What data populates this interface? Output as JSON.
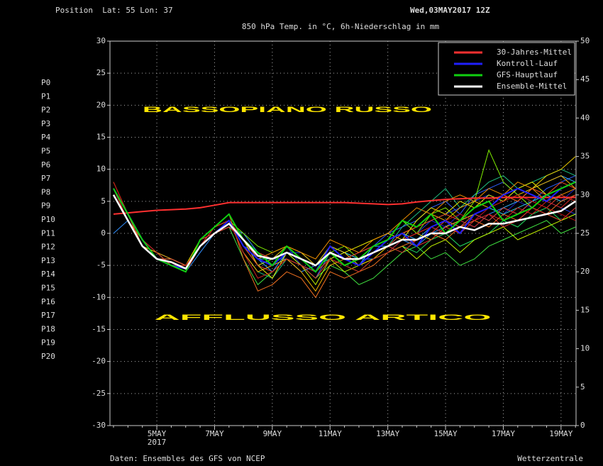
{
  "chart_data": {
    "type": "line",
    "position": "Position  Lat: 55 Lon: 37",
    "date": "Wed,03MAY2017 12Z",
    "title": "850 hPa Temp. in °C, 6h-Niederschlag in mm",
    "source": "Daten: Ensembles des GFS von NCEP",
    "credit": "Wetterzentrale",
    "annotations": [
      "BASSOPIANO RUSSO",
      "AFFLUSSO ARTICO"
    ],
    "year_label": "2017",
    "categories": [
      null,
      null,
      null,
      "5MAY",
      null,
      null,
      null,
      "7MAY",
      null,
      null,
      null,
      "9MAY",
      null,
      null,
      null,
      "11MAY",
      null,
      null,
      null,
      "13MAY",
      null,
      null,
      null,
      "15MAY",
      null,
      null,
      null,
      "17MAY",
      null,
      null,
      null,
      "19MAY",
      null
    ],
    "ylim": [
      -30,
      30
    ],
    "yticks": [
      -30,
      -25,
      -20,
      -15,
      -10,
      -5,
      0,
      5,
      10,
      15,
      20,
      25,
      30
    ],
    "y2lim": [
      0,
      50
    ],
    "y2ticks": [
      0,
      5,
      10,
      15,
      20,
      25,
      30,
      35,
      40,
      45,
      50
    ],
    "grid": true,
    "legend": "upper right",
    "series": [
      {
        "name": "30-Jahres-Mittel",
        "color": "#ff3030",
        "values": [
          3,
          3.2,
          3.4,
          3.6,
          3.7,
          3.8,
          4,
          4.4,
          4.8,
          4.8,
          4.8,
          4.8,
          4.8,
          4.8,
          4.8,
          4.8,
          4.8,
          4.7,
          4.6,
          4.5,
          4.6,
          4.9,
          5.1,
          5.3,
          5.4,
          5.5,
          5.5,
          5.6,
          5.6,
          5.6,
          5.6,
          5.6,
          5.6
        ]
      },
      {
        "name": "Kontroll-Lauf",
        "color": "#2020ff",
        "values": [
          7,
          3,
          -1,
          -4,
          -5,
          -5.5,
          -2,
          0,
          2,
          -2,
          -4,
          -5,
          -3,
          -4,
          -6,
          -2,
          -4,
          -5,
          -3,
          -1,
          0,
          -2,
          1,
          2,
          0,
          3,
          4,
          6,
          7,
          6,
          5,
          7,
          8
        ]
      },
      {
        "name": "GFS-Hauptlauf",
        "color": "#10d010",
        "values": [
          7,
          3,
          -1,
          -4,
          -5,
          -6,
          -1,
          1,
          3,
          -1,
          -3,
          -5,
          -2,
          -4,
          -6,
          -3,
          -5,
          -4,
          -2,
          -1,
          2,
          1,
          3,
          0,
          2,
          4,
          5,
          2,
          3,
          4,
          6,
          7,
          8
        ]
      },
      {
        "name": "Ensemble-Mittel",
        "color": "#ffffff",
        "values": [
          6,
          2,
          -2,
          -4,
          -4.5,
          -5.5,
          -2,
          0,
          1.5,
          -1,
          -3.5,
          -4,
          -3,
          -4,
          -5,
          -3,
          -4,
          -4,
          -3,
          -2,
          -1,
          -1,
          0,
          0,
          1,
          0.5,
          1.5,
          1.5,
          2,
          2.5,
          3,
          3.5,
          5
        ]
      }
    ],
    "members": [
      {
        "name": "P0",
        "color": "#2020c8",
        "values": [
          8,
          3,
          -1,
          -4,
          -4,
          -5,
          -2,
          1,
          2,
          -2,
          -5,
          -4,
          -2,
          -5,
          -6,
          -2,
          -3,
          -5,
          -2,
          -1,
          0,
          1,
          2,
          1,
          3,
          2,
          4,
          3,
          5,
          4,
          6,
          5,
          7
        ]
      },
      {
        "name": "P1",
        "color": "#2040e8",
        "values": [
          7,
          2,
          -2,
          -4,
          -5,
          -6,
          -1,
          0,
          1,
          -1,
          -4,
          -5,
          -3,
          -3,
          -5,
          -4,
          -5,
          -4,
          -3,
          -2,
          -1,
          0,
          2,
          3,
          4,
          5,
          6,
          5,
          7,
          6,
          5,
          4,
          3
        ]
      },
      {
        "name": "P2",
        "color": "#3060ff",
        "values": [
          7,
          2,
          -2,
          -3,
          -4,
          -5,
          -2,
          0,
          2,
          -2,
          -3,
          -4,
          -4,
          -5,
          -7,
          -3,
          -4,
          -3,
          -2,
          0,
          1,
          2,
          4,
          5,
          3,
          6,
          7,
          8,
          6,
          5,
          7,
          8,
          9
        ]
      },
      {
        "name": "P3",
        "color": "#3090ff",
        "values": [
          0,
          2,
          -2,
          -4,
          -5,
          -6,
          -3,
          0,
          1,
          0,
          -3,
          -5,
          -4,
          -6,
          -5,
          -2,
          -3,
          -4,
          -4,
          -3,
          -1,
          -2,
          0,
          1,
          2,
          1,
          3,
          4,
          3,
          5,
          6,
          7,
          8
        ]
      },
      {
        "name": "P4",
        "color": "#30b0ff",
        "values": [
          7,
          3,
          -2,
          -4,
          -5,
          -5,
          -2,
          1,
          2,
          -1,
          -4,
          -6,
          -3,
          -4,
          -5,
          -3,
          -4,
          -5,
          -2,
          -2,
          0,
          -1,
          1,
          0,
          2,
          3,
          2,
          4,
          5,
          7,
          8,
          9,
          8
        ]
      },
      {
        "name": "P5",
        "color": "#30d0e0",
        "values": [
          6,
          2,
          -1,
          -4,
          -4,
          -5,
          -2,
          0,
          2,
          -2,
          -4,
          -4,
          -3,
          -5,
          -6,
          -4,
          -3,
          -4,
          -3,
          -2,
          -1,
          0,
          1,
          2,
          1,
          3,
          4,
          3,
          4,
          5,
          6,
          5,
          6
        ]
      },
      {
        "name": "P6",
        "color": "#20c080",
        "values": [
          7,
          3,
          -2,
          -4,
          -5,
          -6,
          -2,
          1,
          2,
          -3,
          -6,
          -7,
          -4,
          -5,
          -6,
          -3,
          -4,
          -5,
          -3,
          -2,
          1,
          3,
          5,
          7,
          4,
          6,
          8,
          9,
          7,
          8,
          9,
          10,
          9
        ]
      },
      {
        "name": "P7",
        "color": "#20e060",
        "values": [
          7,
          2,
          -2,
          -4,
          -5,
          -6,
          -1,
          1,
          2,
          -1,
          -3,
          -5,
          -3,
          -4,
          -5,
          -4,
          -5,
          -6,
          -4,
          -3,
          -2,
          -3,
          -1,
          0,
          -2,
          -1,
          0,
          2,
          1,
          3,
          4,
          2,
          3
        ]
      },
      {
        "name": "P8",
        "color": "#40e040",
        "values": [
          7,
          3,
          -1,
          -4,
          -5,
          -5,
          -2,
          0,
          1,
          -4,
          -8,
          -6,
          -4,
          -5,
          -7,
          -5,
          -6,
          -8,
          -7,
          -5,
          -3,
          -2,
          -4,
          -3,
          -5,
          -4,
          -2,
          -1,
          0,
          1,
          2,
          0,
          1
        ]
      },
      {
        "name": "P9",
        "color": "#80f000",
        "values": [
          7,
          2,
          -2,
          -3,
          -5,
          -6,
          -1,
          1,
          2,
          0,
          -2,
          -3,
          -2,
          -4,
          -6,
          -3,
          -2,
          -4,
          -3,
          -1,
          2,
          0,
          3,
          4,
          2,
          5,
          13,
          8,
          6,
          4,
          3,
          2,
          3
        ]
      },
      {
        "name": "P10",
        "color": "#c0f000",
        "values": [
          8,
          3,
          -2,
          -4,
          -5,
          -6,
          -2,
          0,
          2,
          -2,
          -5,
          -4,
          -3,
          -5,
          -8,
          -4,
          -6,
          -5,
          -4,
          -3,
          -2,
          -4,
          -2,
          -1,
          -3,
          -1,
          0,
          1,
          -1,
          0,
          1,
          2,
          3
        ]
      },
      {
        "name": "P11",
        "color": "#f0f000",
        "values": [
          7,
          2,
          -2,
          -4,
          -4,
          -5,
          -1,
          1,
          3,
          -1,
          -5,
          -7,
          -3,
          -4,
          -6,
          -4,
          -3,
          -2,
          -1,
          0,
          -1,
          2,
          4,
          3,
          5,
          4,
          6,
          5,
          7,
          8,
          6,
          7,
          8
        ]
      },
      {
        "name": "P12",
        "color": "#f0d000",
        "values": [
          7,
          3,
          -1,
          -4,
          -5,
          -6,
          -2,
          0,
          1,
          -1,
          -3,
          -4,
          -2,
          -3,
          -5,
          -2,
          -3,
          -5,
          -4,
          -2,
          -1,
          0,
          -1,
          1,
          2,
          3,
          4,
          5,
          6,
          7,
          9,
          10,
          12
        ]
      },
      {
        "name": "P13",
        "color": "#f0b000",
        "values": [
          6,
          2,
          -2,
          -3,
          -4,
          -5,
          -2,
          1,
          2,
          -3,
          -6,
          -5,
          -4,
          -6,
          -9,
          -5,
          -4,
          -3,
          -2,
          -1,
          0,
          1,
          3,
          2,
          4,
          5,
          4,
          6,
          5,
          7,
          8,
          9,
          7
        ]
      },
      {
        "name": "P14",
        "color": "#f09000",
        "values": [
          7,
          3,
          -2,
          -4,
          -5,
          -6,
          -1,
          0,
          2,
          -2,
          -4,
          -3,
          -2,
          -3,
          -4,
          -1,
          -2,
          -3,
          -1,
          0,
          2,
          4,
          3,
          5,
          6,
          5,
          7,
          6,
          8,
          7,
          5,
          6,
          7
        ]
      },
      {
        "name": "P15",
        "color": "#f07020",
        "values": [
          7,
          2,
          -1,
          -4,
          -5,
          -5,
          -2,
          1,
          3,
          -4,
          -9,
          -8,
          -6,
          -7,
          -10,
          -6,
          -7,
          -6,
          -5,
          -3,
          -2,
          -1,
          0,
          -1,
          1,
          2,
          1,
          3,
          2,
          4,
          3,
          5,
          6
        ]
      },
      {
        "name": "P16",
        "color": "#f05020",
        "values": [
          8,
          3,
          -2,
          -4,
          -5,
          -6,
          -2,
          0,
          2,
          -1,
          -4,
          -5,
          -3,
          -4,
          -6,
          -3,
          -4,
          -5,
          -3,
          -2,
          0,
          1,
          2,
          3,
          2,
          4,
          5,
          6,
          5,
          7,
          6,
          8,
          7
        ]
      },
      {
        "name": "P17",
        "color": "#e04030",
        "values": [
          7,
          2,
          -2,
          -4,
          -4,
          -5,
          -2,
          1,
          2,
          -2,
          -5,
          -6,
          -4,
          -5,
          -7,
          -4,
          -5,
          -4,
          -3,
          -2,
          -3,
          -1,
          0,
          2,
          1,
          3,
          2,
          4,
          3,
          5,
          4,
          6,
          5
        ]
      },
      {
        "name": "P18",
        "color": "#e03030",
        "values": [
          7,
          3,
          -1,
          -3,
          -5,
          -6,
          -1,
          0,
          1,
          -1,
          -3,
          -4,
          -3,
          -4,
          -5,
          -3,
          -4,
          -3,
          -2,
          -1,
          0,
          -2,
          -1,
          1,
          0,
          2,
          3,
          1,
          2,
          4,
          3,
          2,
          4
        ]
      },
      {
        "name": "P19",
        "color": "#d02020",
        "values": [
          7,
          2,
          -2,
          -4,
          -5,
          -6,
          -2,
          1,
          2,
          -3,
          -7,
          -6,
          -4,
          -5,
          -6,
          -4,
          -5,
          -6,
          -4,
          -3,
          -1,
          0,
          1,
          0,
          2,
          1,
          3,
          2,
          4,
          3,
          5,
          4,
          6
        ]
      },
      {
        "name": "P20",
        "color": "#c01010",
        "values": [
          8,
          3,
          -1,
          -4,
          -5,
          -5,
          -2,
          0,
          2,
          -2,
          -4,
          -5,
          -3,
          -4,
          -6,
          -3,
          -4,
          -5,
          -3,
          -2,
          -1,
          0,
          1,
          2,
          3,
          2,
          4,
          5,
          6,
          5,
          4,
          3,
          2
        ]
      }
    ]
  }
}
